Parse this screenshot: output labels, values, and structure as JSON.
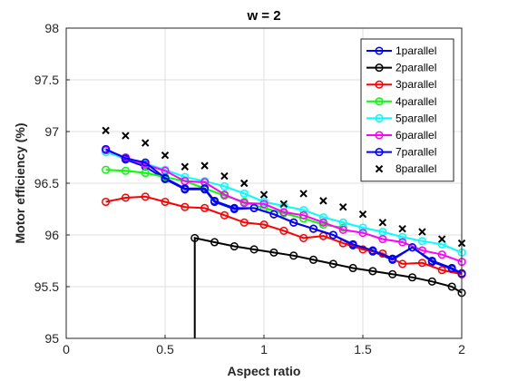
{
  "chart_data": {
    "type": "line",
    "title": "w = 2",
    "xlabel": "Aspect ratio",
    "ylabel": "Motor efficiency (%)",
    "xlim": [
      0,
      2
    ],
    "ylim": [
      95,
      98
    ],
    "xticks": [
      0,
      0.5,
      1,
      1.5,
      2
    ],
    "xtick_labels": [
      "0",
      "0.5",
      "1",
      "1.5",
      "2"
    ],
    "yticks": [
      95,
      95.5,
      96,
      96.5,
      97,
      97.5,
      98
    ],
    "ytick_labels": [
      "95",
      "95.5",
      "96",
      "96.5",
      "97",
      "97.5",
      "98"
    ],
    "grid": true,
    "legend_location": "top-right",
    "series": [
      {
        "name": "1parallel",
        "color": "#0000ff",
        "marker": "circle",
        "x": [
          0.2,
          0.3,
          0.4,
          0.5,
          0.6,
          0.7,
          0.75,
          0.85,
          0.95,
          1.05,
          1.15,
          1.25,
          1.35,
          1.45,
          1.55,
          1.65,
          1.75,
          1.85,
          1.95,
          2.0
        ],
        "y": [
          96.82,
          96.73,
          96.66,
          96.54,
          96.44,
          96.44,
          96.32,
          96.25,
          96.26,
          96.2,
          96.12,
          96.06,
          96.0,
          95.9,
          95.84,
          95.76,
          95.88,
          95.74,
          95.67,
          95.62
        ]
      },
      {
        "name": "2parallel",
        "color": "#000000",
        "marker": "circle",
        "x": [
          0.65,
          0.65,
          0.75,
          0.85,
          0.95,
          1.05,
          1.15,
          1.25,
          1.35,
          1.45,
          1.55,
          1.65,
          1.75,
          1.85,
          1.95,
          2.0
        ],
        "y": [
          95.0,
          95.97,
          95.93,
          95.89,
          95.86,
          95.83,
          95.8,
          95.76,
          95.72,
          95.68,
          95.65,
          95.62,
          95.59,
          95.55,
          95.5,
          95.44
        ]
      },
      {
        "name": "3parallel",
        "color": "#ff0000",
        "marker": "circle",
        "x": [
          0.2,
          0.3,
          0.4,
          0.5,
          0.6,
          0.7,
          0.8,
          0.9,
          1.0,
          1.1,
          1.2,
          1.3,
          1.4,
          1.5,
          1.6,
          1.7,
          1.8,
          1.9,
          2.0
        ],
        "y": [
          96.32,
          96.36,
          96.37,
          96.32,
          96.27,
          96.26,
          96.19,
          96.12,
          96.1,
          96.04,
          95.97,
          95.99,
          95.92,
          95.86,
          95.82,
          95.72,
          95.73,
          95.66,
          95.62
        ]
      },
      {
        "name": "4parallel",
        "color": "#00ff00",
        "marker": "circle",
        "x": [
          0.2,
          0.3,
          0.4,
          0.5,
          0.6,
          0.7,
          0.8,
          0.9,
          1.0,
          1.1,
          1.2,
          1.3,
          1.4
        ],
        "y": [
          96.63,
          96.62,
          96.6,
          96.56,
          96.52,
          96.45,
          96.38,
          96.32,
          96.26,
          96.21,
          96.16,
          96.1,
          96.07
        ]
      },
      {
        "name": "5parallel",
        "color": "#00ffff",
        "marker": "circle",
        "x": [
          0.2,
          0.3,
          0.4,
          0.5,
          0.6,
          0.7,
          0.8,
          0.9,
          1.0,
          1.1,
          1.2,
          1.3,
          1.4,
          1.5,
          1.6,
          1.7,
          1.8,
          1.9,
          2.0
        ],
        "y": [
          96.8,
          96.74,
          96.69,
          96.63,
          96.56,
          96.52,
          96.47,
          96.4,
          96.32,
          96.28,
          96.24,
          96.17,
          96.12,
          96.07,
          96.03,
          95.98,
          95.94,
          95.91,
          95.83
        ]
      },
      {
        "name": "6parallel",
        "color": "#ff00ff",
        "marker": "circle",
        "x": [
          0.2,
          0.3,
          0.4,
          0.5,
          0.6,
          0.7,
          0.8,
          0.9,
          1.0,
          1.1,
          1.2,
          1.3,
          1.4,
          1.5,
          1.6,
          1.7,
          1.8,
          1.9,
          2.0
        ],
        "y": [
          96.82,
          96.75,
          96.68,
          96.62,
          96.52,
          96.51,
          96.39,
          96.31,
          96.3,
          96.22,
          96.19,
          96.12,
          96.05,
          96.02,
          95.96,
          95.93,
          95.85,
          95.81,
          95.74
        ]
      },
      {
        "name": "7parallel",
        "color": "#0000ff",
        "marker": "circle",
        "x": [
          0.2,
          0.3,
          0.4,
          0.5,
          0.6,
          0.7,
          0.75,
          0.85,
          0.95,
          1.05,
          1.15,
          1.25,
          1.35,
          1.45,
          1.55,
          1.65,
          1.75,
          1.85,
          1.95,
          2.0
        ],
        "y": [
          96.83,
          96.74,
          96.7,
          96.55,
          96.45,
          96.45,
          96.33,
          96.26,
          96.26,
          96.2,
          96.12,
          96.06,
          96.0,
          95.91,
          95.85,
          95.77,
          95.88,
          95.75,
          95.68,
          95.63
        ]
      },
      {
        "name": "8parallel",
        "color": "#000000",
        "marker": "x",
        "x": [
          0.2,
          0.3,
          0.4,
          0.5,
          0.6,
          0.7,
          0.8,
          0.9,
          1.0,
          1.1,
          1.2,
          1.3,
          1.4,
          1.5,
          1.6,
          1.7,
          1.8,
          1.9,
          2.0
        ],
        "y": [
          97.01,
          96.96,
          96.89,
          96.77,
          96.66,
          96.67,
          96.57,
          96.5,
          96.39,
          96.3,
          96.4,
          96.33,
          96.27,
          96.2,
          96.12,
          96.06,
          96.03,
          95.96,
          95.92
        ]
      }
    ]
  }
}
